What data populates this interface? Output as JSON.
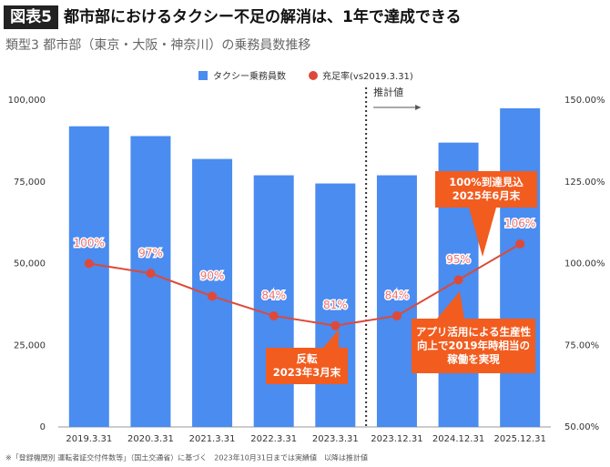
{
  "header": {
    "badge": "図表5",
    "title": "都市部におけるタクシー不足の解消は、1年で達成できる"
  },
  "chart_data": {
    "type": "bar_line",
    "title": "類型3 都市部（東京・大阪・神奈川）の乗務員数推移",
    "categories": [
      "2019.3.31",
      "2020.3.31",
      "2021.3.31",
      "2022.3.31",
      "2023.3.31",
      "2023.12.31",
      "2024.12.31",
      "2025.12.31"
    ],
    "series": [
      {
        "name": "タクシー乗務員数",
        "color": "#4a8cf0",
        "values": [
          92000,
          89000,
          82000,
          77000,
          74500,
          77000,
          87000,
          97500
        ]
      },
      {
        "name": "充足率(vs2019.3.31)",
        "color": "#dd4a3a",
        "axis": "y2",
        "values": [
          100,
          97,
          90,
          84,
          81,
          84,
          95,
          106
        ],
        "value_labels": [
          "100%",
          "97%",
          "90%",
          "84%",
          "81%",
          "84%",
          "95%",
          "106%"
        ]
      }
    ],
    "ylim": [
      0,
      100000
    ],
    "yticks": [
      0,
      {
        "value": 25000,
        "label": "25,000"
      },
      {
        "value": 50000,
        "label": "50,000"
      },
      {
        "value": 75000,
        "label": "75,000"
      },
      {
        "value": 100000,
        "label": "100,000"
      }
    ],
    "y2lim": [
      50,
      150
    ],
    "y2ticks": [
      {
        "value": 50,
        "label": "50.00%"
      },
      {
        "value": 75,
        "label": "75.00%"
      },
      {
        "value": 100,
        "label": "100.00%"
      },
      {
        "value": 125,
        "label": "125.00%"
      },
      {
        "value": 150,
        "label": "150.00%"
      }
    ],
    "forecast_label": "推計値",
    "annotations": [
      {
        "lines": [
          "100%到達見込",
          "2025年6月末"
        ]
      },
      {
        "lines": [
          "アプリ活用による生産性",
          "向上で2019年時相当の",
          "稼働を実現"
        ]
      },
      {
        "lines": [
          "反転",
          "2023年3月末"
        ]
      }
    ]
  },
  "footnote": "※「登録機関別 運転者証交付件数等」（国土交通省）に基づく　2023年10月31日までは実績値　以降は推計値"
}
